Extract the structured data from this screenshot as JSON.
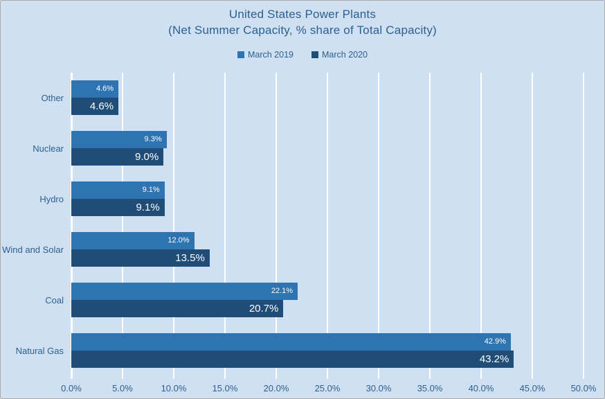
{
  "title": {
    "line1": "United States Power Plants",
    "line2": "(Net Summer Capacity, % share of Total Capacity)"
  },
  "legend": [
    {
      "label": "March 2019",
      "color": "#2e74b2"
    },
    {
      "label": "March 2020",
      "color": "#1f4d77"
    }
  ],
  "colors": {
    "background": "#cfe0f3",
    "bar_march_2019": "#2e74b2",
    "bar_march_2020": "#1f4d77",
    "text": "#2d5f8e",
    "gridline": "#ffffff"
  },
  "chart_data": {
    "type": "bar",
    "orientation": "horizontal",
    "title": "United States Power Plants",
    "subtitle": "(Net Summer Capacity, % share of Total Capacity)",
    "categories": [
      "Other",
      "Nuclear",
      "Hydro",
      "Wind and Solar",
      "Coal",
      "Natural Gas"
    ],
    "series": [
      {
        "name": "March 2019",
        "color": "#2e74b2",
        "values": [
          4.6,
          9.3,
          9.1,
          12.0,
          22.1,
          42.9
        ],
        "labels": [
          "4.6%",
          "9.3%",
          "9.1%",
          "12.0%",
          "22.1%",
          "42.9%"
        ]
      },
      {
        "name": "March 2020",
        "color": "#1f4d77",
        "values": [
          4.6,
          9.0,
          9.1,
          13.5,
          20.7,
          43.2
        ],
        "labels": [
          "4.6%",
          "9.0%",
          "9.1%",
          "13.5%",
          "20.7%",
          "43.2%"
        ]
      }
    ],
    "xlim": [
      0,
      50
    ],
    "x_ticks": [
      "0.0%",
      "5.0%",
      "10.0%",
      "15.0%",
      "20.0%",
      "25.0%",
      "30.0%",
      "35.0%",
      "40.0%",
      "45.0%",
      "50.0%"
    ],
    "xlabel": "",
    "ylabel": "",
    "gridlines": true,
    "legend_position": "top"
  }
}
